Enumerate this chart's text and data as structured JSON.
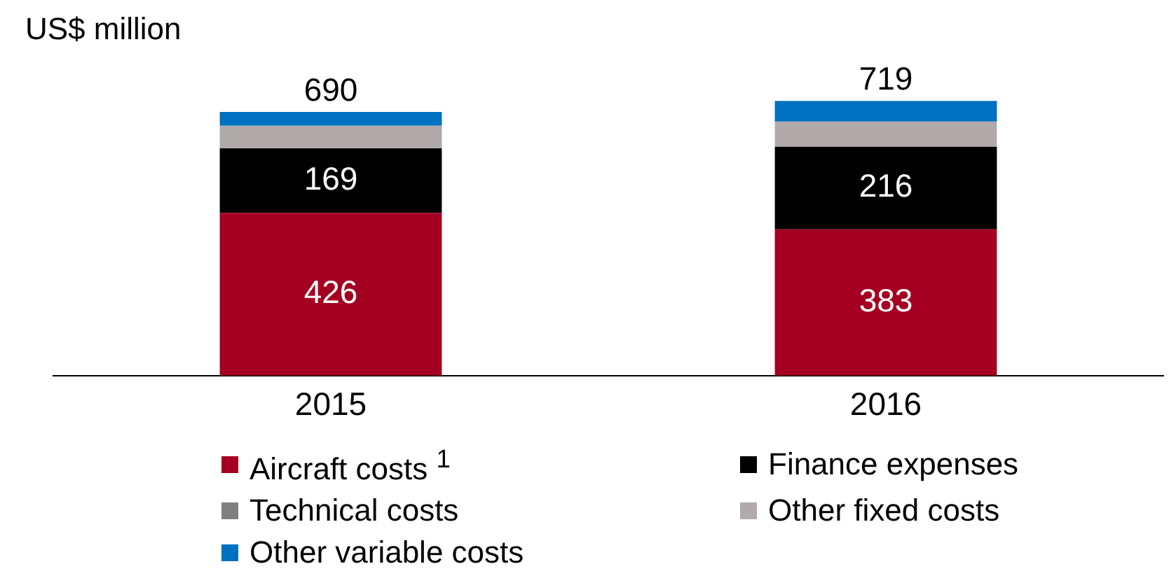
{
  "chart_data": {
    "type": "bar",
    "stacked": true,
    "ylabel": "US$ million",
    "categories": [
      "2015",
      "2016"
    ],
    "legend": "bottom",
    "series": [
      {
        "name": "Aircraft costs $^{1}$",
        "color": "#a50021",
        "values": [
          426,
          383
        ],
        "value_labels": [
          "426",
          "383"
        ]
      },
      {
        "name": "Finance expenses",
        "color": "#000000",
        "values": [
          169,
          216
        ],
        "value_labels": [
          "169",
          "216"
        ]
      },
      {
        "name": "Technical costs",
        "color": "#808080",
        "values": [
          null,
          null
        ]
      },
      {
        "name": "Other fixed costs",
        "color": "#b0aaaa",
        "values": [
          59,
          66
        ]
      },
      {
        "name": "Other variable costs",
        "color": "#0070c0",
        "values": [
          36,
          54
        ]
      }
    ],
    "totals": [
      "690",
      "719"
    ]
  }
}
